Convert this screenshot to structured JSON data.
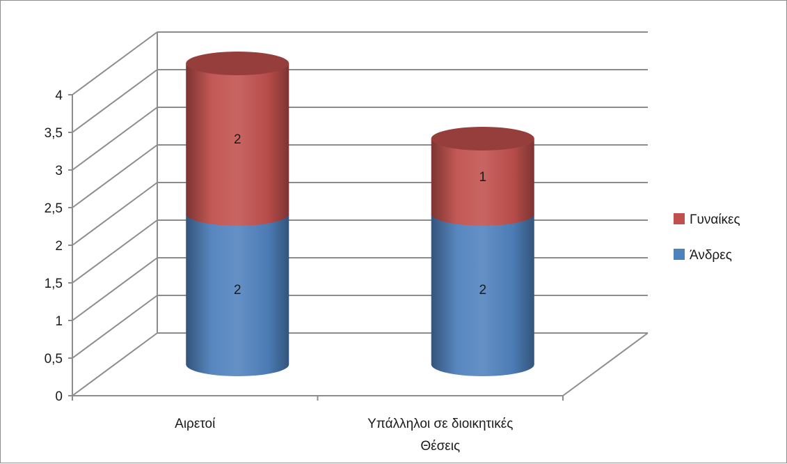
{
  "chart_data": {
    "type": "bar",
    "style": "3d-cylinder-stacked",
    "categories": [
      "Αιρετοί",
      "Υπάλληλοι σε διοικητικές Θέσεις"
    ],
    "category_lines": [
      [
        "Αιρετοί"
      ],
      [
        "Υπάλληλοι σε διοικητικές",
        "Θέσεις"
      ]
    ],
    "series": [
      {
        "name": "Άνδρες",
        "values": [
          2,
          2
        ],
        "color": "#4f81bd"
      },
      {
        "name": "Γυναίκες",
        "values": [
          2,
          1
        ],
        "color": "#c0504d"
      }
    ],
    "ylim": [
      0,
      4
    ],
    "yticks": [
      "0",
      "0,5",
      "1",
      "1,5",
      "2",
      "2,5",
      "3",
      "3,5",
      "4"
    ],
    "grid": true,
    "legend_position": "right",
    "data_labels": true
  }
}
